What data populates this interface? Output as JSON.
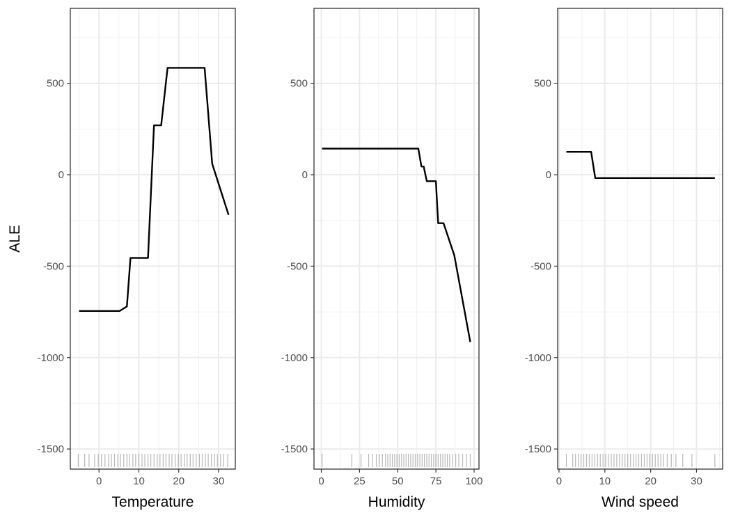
{
  "chart_data": {
    "type": "line",
    "ylabel": "ALE",
    "ylim": [
      -1610,
      910
    ],
    "yticks": [
      500,
      0,
      -500,
      -1000,
      -1500
    ],
    "grid": true,
    "rug": true,
    "panels": [
      {
        "xlabel": "Temperature",
        "xlim": [
          -7.2,
          34.2
        ],
        "xticks": [
          0,
          10,
          20,
          30
        ],
        "points": [
          [
            -5,
            -745
          ],
          [
            5.2,
            -745
          ],
          [
            7,
            -720
          ],
          [
            7.9,
            -455
          ],
          [
            12.3,
            -455
          ],
          [
            13.8,
            270
          ],
          [
            15.6,
            270
          ],
          [
            17.2,
            585
          ],
          [
            26.5,
            585
          ],
          [
            28.4,
            60
          ],
          [
            32.5,
            -220
          ]
        ],
        "rug": [
          -5.2,
          -3.6,
          -2.5,
          -1.1,
          -0.2,
          0.6,
          1.5,
          2.4,
          3.1,
          3.9,
          4.7,
          5.4,
          6.2,
          7.0,
          7.7,
          8.5,
          9.2,
          10.0,
          10.8,
          11.5,
          12.3,
          13.0,
          13.8,
          14.6,
          15.3,
          16.1,
          16.8,
          17.6,
          18.3,
          19.1,
          19.9,
          20.6,
          21.4,
          22.1,
          22.9,
          23.6,
          24.4,
          25.2,
          25.9,
          26.7,
          27.4,
          28.2,
          29.0,
          29.7,
          30.5,
          31.3,
          32.3
        ]
      },
      {
        "xlabel": "Humidity",
        "xlim": [
          -4.8,
          103.2
        ],
        "xticks": [
          0,
          25,
          50,
          75,
          100
        ],
        "points": [
          [
            0.5,
            143
          ],
          [
            63.5,
            143
          ],
          [
            65.5,
            45
          ],
          [
            67,
            45
          ],
          [
            69,
            -35
          ],
          [
            75,
            -35
          ],
          [
            76.5,
            -265
          ],
          [
            80,
            -265
          ],
          [
            87,
            -440
          ],
          [
            97.5,
            -915
          ]
        ],
        "rug": [
          0.5,
          20.0,
          26.0,
          31.0,
          33.5,
          36.0,
          38.0,
          40.0,
          42.0,
          43.5,
          45.0,
          46.5,
          48.0,
          49.5,
          51.0,
          52.5,
          54.0,
          55.5,
          57.0,
          58.5,
          60.0,
          61.5,
          63.0,
          64.5,
          66.0,
          67.5,
          69.0,
          70.5,
          72.0,
          73.5,
          75.0,
          76.5,
          78.0,
          79.5,
          81.0,
          82.5,
          84.0,
          86.0,
          88.0,
          90.0,
          92.5,
          95.0,
          97.5
        ]
      },
      {
        "xlabel": "Wind speed",
        "xlim": [
          -0.3,
          35.7
        ],
        "xticks": [
          0,
          10,
          20,
          30
        ],
        "points": [
          [
            1.6,
            125
          ],
          [
            7,
            125
          ],
          [
            7.9,
            -18
          ],
          [
            34,
            -18
          ]
        ],
        "rug": [
          1.6,
          3.0,
          3.6,
          4.2,
          4.8,
          5.4,
          6.0,
          6.6,
          7.2,
          7.8,
          8.4,
          9.0,
          9.6,
          10.2,
          10.8,
          11.4,
          12.0,
          12.6,
          13.2,
          13.8,
          14.4,
          15.0,
          15.6,
          16.2,
          16.8,
          17.4,
          18.0,
          18.6,
          19.2,
          19.8,
          20.4,
          21.0,
          21.6,
          22.2,
          22.8,
          23.6,
          24.5,
          25.5,
          27.0,
          29.0,
          34.0
        ]
      }
    ]
  }
}
